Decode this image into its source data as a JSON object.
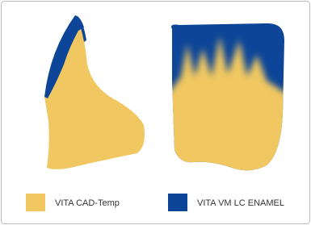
{
  "legend": [
    {
      "label": "VITA CAD-Temp"
    },
    {
      "label": "VITA VM LC ENAMEL"
    }
  ]
}
